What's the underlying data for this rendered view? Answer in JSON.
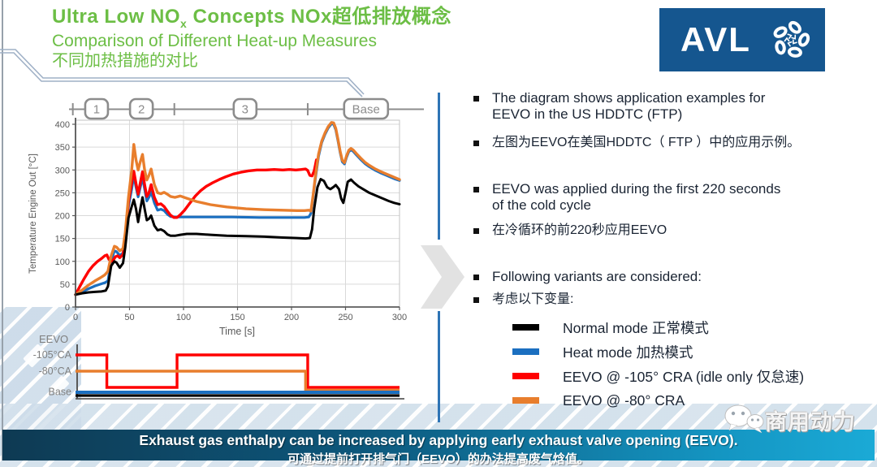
{
  "title": {
    "line1_prefix": "Ultra Low NO",
    "line1_sub": "x",
    "line1_suffix": " Concepts NOx超低排放概念",
    "line2": "Comparison of Different Heat-up Measures",
    "line3": "不同加热措施的对比",
    "color": "#6cbe45"
  },
  "logo": {
    "text": "AVL",
    "background": "#15568f"
  },
  "chart_data": {
    "type": "line",
    "xlabel": "Time [s]",
    "ylabel": "Temperature Engine Out [°C]",
    "xlim": [
      0,
      300
    ],
    "ylim": [
      0,
      400
    ],
    "xticks": [
      0,
      50,
      100,
      150,
      200,
      250,
      300
    ],
    "yticks": [
      0,
      50,
      100,
      150,
      200,
      250,
      300,
      350,
      400
    ],
    "grid": true,
    "phase_markers": [
      {
        "label": "1",
        "t": 19.5
      },
      {
        "label": "2",
        "t": 61
      },
      {
        "label": "3",
        "t": 157
      },
      {
        "label": "Base",
        "t": 269
      }
    ],
    "phase_boundary_ticks_t": [
      -2.5,
      29,
      91.5,
      215
    ],
    "series": [
      {
        "name": "Normal mode 正常模式",
        "color": "#000000",
        "points": [
          [
            0,
            27
          ],
          [
            6,
            30
          ],
          [
            12,
            32
          ],
          [
            18,
            33
          ],
          [
            24,
            34
          ],
          [
            28,
            36
          ],
          [
            30,
            45
          ],
          [
            33,
            90
          ],
          [
            36,
            100
          ],
          [
            38,
            97
          ],
          [
            41,
            86
          ],
          [
            44,
            96
          ],
          [
            46,
            130
          ],
          [
            49,
            195
          ],
          [
            52,
            220
          ],
          [
            54,
            235
          ],
          [
            56,
            215
          ],
          [
            58,
            186
          ],
          [
            60,
            215
          ],
          [
            62,
            240
          ],
          [
            64,
            215
          ],
          [
            66,
            190
          ],
          [
            68,
            193
          ],
          [
            70,
            200
          ],
          [
            73,
            178
          ],
          [
            76,
            168
          ],
          [
            79,
            170
          ],
          [
            82,
            166
          ],
          [
            85,
            159
          ],
          [
            88,
            156
          ],
          [
            92,
            156
          ],
          [
            97,
            158
          ],
          [
            103,
            160
          ],
          [
            112,
            160
          ],
          [
            125,
            158
          ],
          [
            140,
            156
          ],
          [
            158,
            155
          ],
          [
            175,
            154
          ],
          [
            192,
            152
          ],
          [
            205,
            151
          ],
          [
            213,
            150
          ],
          [
            217,
            151
          ],
          [
            219,
            170
          ],
          [
            221,
            215
          ],
          [
            224,
            262
          ],
          [
            227,
            280
          ],
          [
            230,
            276
          ],
          [
            233,
            262
          ],
          [
            236,
            258
          ],
          [
            239,
            263
          ],
          [
            241,
            267
          ],
          [
            244,
            258
          ],
          [
            246,
            237
          ],
          [
            248,
            228
          ],
          [
            250,
            250
          ],
          [
            252,
            274
          ],
          [
            255,
            279
          ],
          [
            258,
            272
          ],
          [
            262,
            264
          ],
          [
            267,
            257
          ],
          [
            272,
            250
          ],
          [
            278,
            244
          ],
          [
            284,
            238
          ],
          [
            290,
            232
          ],
          [
            295,
            228
          ],
          [
            300,
            225
          ]
        ]
      },
      {
        "name": "Heat mode 加热模式",
        "color": "#1b6fc0",
        "points": [
          [
            0,
            27
          ],
          [
            6,
            33
          ],
          [
            12,
            40
          ],
          [
            18,
            46
          ],
          [
            23,
            50
          ],
          [
            27,
            53
          ],
          [
            30,
            57
          ],
          [
            33,
            100
          ],
          [
            36,
            123
          ],
          [
            38,
            121
          ],
          [
            41,
            113
          ],
          [
            44,
            118
          ],
          [
            46,
            150
          ],
          [
            49,
            220
          ],
          [
            52,
            258
          ],
          [
            54,
            288
          ],
          [
            56,
            262
          ],
          [
            58,
            241
          ],
          [
            60,
            262
          ],
          [
            62,
            284
          ],
          [
            64,
            258
          ],
          [
            66,
            232
          ],
          [
            68,
            240
          ],
          [
            70,
            252
          ],
          [
            73,
            228
          ],
          [
            76,
            212
          ],
          [
            79,
            214
          ],
          [
            82,
            211
          ],
          [
            85,
            203
          ],
          [
            88,
            198
          ],
          [
            92,
            197
          ],
          [
            100,
            197
          ],
          [
            120,
            197
          ],
          [
            145,
            197
          ],
          [
            170,
            196
          ],
          [
            195,
            196
          ],
          [
            212,
            196
          ],
          [
            216,
            197
          ],
          [
            218,
            205
          ],
          [
            220,
            240
          ],
          [
            222,
            280
          ],
          [
            225,
            330
          ],
          [
            228,
            360
          ],
          [
            231,
            378
          ],
          [
            234,
            392
          ],
          [
            237,
            401
          ],
          [
            239,
            400
          ],
          [
            241,
            388
          ],
          [
            243,
            364
          ],
          [
            245,
            338
          ],
          [
            247,
            318
          ],
          [
            249,
            313
          ],
          [
            251,
            328
          ],
          [
            253,
            340
          ],
          [
            255,
            344
          ],
          [
            257,
            341
          ],
          [
            260,
            333
          ],
          [
            264,
            323
          ],
          [
            268,
            314
          ],
          [
            272,
            307
          ],
          [
            277,
            300
          ],
          [
            282,
            294
          ],
          [
            287,
            289
          ],
          [
            292,
            284
          ],
          [
            296,
            280
          ],
          [
            300,
            277
          ]
        ]
      },
      {
        "name": "EEVO @ -105° CRA (idle only 仅怠速)",
        "color": "#ff0000",
        "points": [
          [
            0,
            27
          ],
          [
            4,
            45
          ],
          [
            8,
            62
          ],
          [
            12,
            78
          ],
          [
            16,
            90
          ],
          [
            20,
            99
          ],
          [
            24,
            106
          ],
          [
            27,
            112
          ],
          [
            29,
            114
          ],
          [
            31,
            104
          ],
          [
            33,
            100
          ],
          [
            35,
            103
          ],
          [
            37,
            110
          ],
          [
            39,
            112
          ],
          [
            41,
            108
          ],
          [
            44,
            115
          ],
          [
            46,
            150
          ],
          [
            49,
            230
          ],
          [
            52,
            272
          ],
          [
            54,
            297
          ],
          [
            56,
            270
          ],
          [
            58,
            247
          ],
          [
            60,
            272
          ],
          [
            62,
            296
          ],
          [
            64,
            268
          ],
          [
            66,
            242
          ],
          [
            68,
            250
          ],
          [
            70,
            268
          ],
          [
            73,
            240
          ],
          [
            76,
            224
          ],
          [
            79,
            226
          ],
          [
            82,
            220
          ],
          [
            85,
            210
          ],
          [
            88,
            201
          ],
          [
            91,
            196
          ],
          [
            94,
            196
          ],
          [
            97,
            202
          ],
          [
            101,
            212
          ],
          [
            106,
            228
          ],
          [
            111,
            243
          ],
          [
            116,
            255
          ],
          [
            121,
            264
          ],
          [
            127,
            272
          ],
          [
            133,
            279
          ],
          [
            139,
            285
          ],
          [
            146,
            291
          ],
          [
            153,
            295
          ],
          [
            160,
            298
          ],
          [
            168,
            300
          ],
          [
            176,
            300
          ],
          [
            184,
            301
          ],
          [
            192,
            300
          ],
          [
            198,
            301
          ],
          [
            204,
            300
          ],
          [
            209,
            301
          ],
          [
            213,
            302
          ],
          [
            215,
            299
          ],
          [
            217,
            288
          ],
          [
            219,
            287
          ],
          [
            221,
            298
          ],
          [
            222,
            310
          ],
          [
            223,
            322
          ]
        ]
      },
      {
        "name": "EEVO @ -80° CRA",
        "color": "#e87e2d",
        "points": [
          [
            0,
            27
          ],
          [
            6,
            37
          ],
          [
            12,
            48
          ],
          [
            18,
            57
          ],
          [
            23,
            64
          ],
          [
            27,
            70
          ],
          [
            30,
            78
          ],
          [
            33,
            112
          ],
          [
            36,
            133
          ],
          [
            38,
            131
          ],
          [
            41,
            123
          ],
          [
            44,
            128
          ],
          [
            46,
            162
          ],
          [
            49,
            240
          ],
          [
            52,
            300
          ],
          [
            54,
            356
          ],
          [
            56,
            322
          ],
          [
            58,
            300
          ],
          [
            60,
            318
          ],
          [
            62,
            334
          ],
          [
            64,
            300
          ],
          [
            66,
            278
          ],
          [
            68,
            288
          ],
          [
            70,
            302
          ],
          [
            73,
            268
          ],
          [
            76,
            250
          ],
          [
            79,
            248
          ],
          [
            82,
            251
          ],
          [
            85,
            247
          ],
          [
            88,
            242
          ],
          [
            92,
            240
          ],
          [
            97,
            243
          ],
          [
            103,
            238
          ],
          [
            112,
            231
          ],
          [
            125,
            224
          ],
          [
            140,
            219
          ],
          [
            158,
            215
          ],
          [
            175,
            213
          ],
          [
            192,
            212
          ],
          [
            205,
            211
          ],
          [
            212,
            211
          ],
          [
            216,
            212
          ],
          [
            218,
            210
          ],
          [
            220,
            245
          ],
          [
            222,
            285
          ],
          [
            225,
            335
          ],
          [
            228,
            363
          ],
          [
            231,
            381
          ],
          [
            234,
            395
          ],
          [
            237,
            404
          ],
          [
            239,
            403
          ],
          [
            241,
            391
          ],
          [
            243,
            367
          ],
          [
            245,
            341
          ],
          [
            247,
            321
          ],
          [
            249,
            316
          ],
          [
            251,
            331
          ],
          [
            253,
            343
          ],
          [
            255,
            347
          ],
          [
            257,
            344
          ],
          [
            260,
            336
          ],
          [
            264,
            326
          ],
          [
            268,
            317
          ],
          [
            272,
            310
          ],
          [
            277,
            303
          ],
          [
            282,
            297
          ],
          [
            287,
            292
          ],
          [
            292,
            287
          ],
          [
            296,
            283
          ],
          [
            300,
            279
          ]
        ]
      }
    ]
  },
  "eevo_chart": {
    "type": "step",
    "axis_title": "EEVO",
    "lane_labels": [
      "-105°CA",
      "-80°CA",
      "Base"
    ],
    "end_time": 300,
    "series": [
      {
        "name": "EEVO @ -105° CRA",
        "color": "#ff0000",
        "steps": [
          [
            0,
            "-105"
          ],
          [
            29,
            "off"
          ],
          [
            94,
            "-105"
          ],
          [
            215,
            "off"
          ]
        ]
      },
      {
        "name": "EEVO @ -80° CRA",
        "color": "#e87e2d",
        "steps": [
          [
            0,
            "-80"
          ],
          [
            213,
            "off2"
          ]
        ]
      },
      {
        "name": "Heat mode",
        "color": "#1b6fc0",
        "steps": [
          [
            0,
            "base"
          ]
        ]
      },
      {
        "name": "Normal mode",
        "color": "#000000",
        "steps": [
          [
            0,
            "base2"
          ]
        ]
      }
    ]
  },
  "right_panel": {
    "bullets": [
      {
        "lines": [
          "The diagram shows application examples for",
          "EEVO in the US HDDTC (FTP)"
        ]
      },
      {
        "lines": [
          "左图为EEVO在美国HDDTC（ FTP ）中的应用示例。"
        ]
      },
      {
        "lines": [
          "EEVO was applied during the first 220 seconds",
          "of the cold cycle"
        ]
      },
      {
        "lines": [
          "在冷循环的前220秒应用EEVO"
        ]
      },
      {
        "lines": [
          "Following variants are considered:"
        ]
      },
      {
        "lines": [
          "考虑以下变量:"
        ]
      }
    ],
    "legend": [
      {
        "label": "Normal mode 正常模式",
        "color": "#000000"
      },
      {
        "label": "Heat mode 加热模式",
        "color": "#1b6fc0"
      },
      {
        "label": "EEVO @ -105° CRA (idle only 仅怠速)",
        "color": "#ff0000"
      },
      {
        "label": "EEVO @ -80° CRA",
        "color": "#e87e2d"
      }
    ]
  },
  "banner": {
    "line1": "Exhaust gas enthalpy can be increased by applying early exhaust valve opening (EEVO).",
    "line2": "可通过提前打开排气门（EEVO）的办法提高废气焓值。"
  },
  "watermark": {
    "text": "商用动力"
  }
}
